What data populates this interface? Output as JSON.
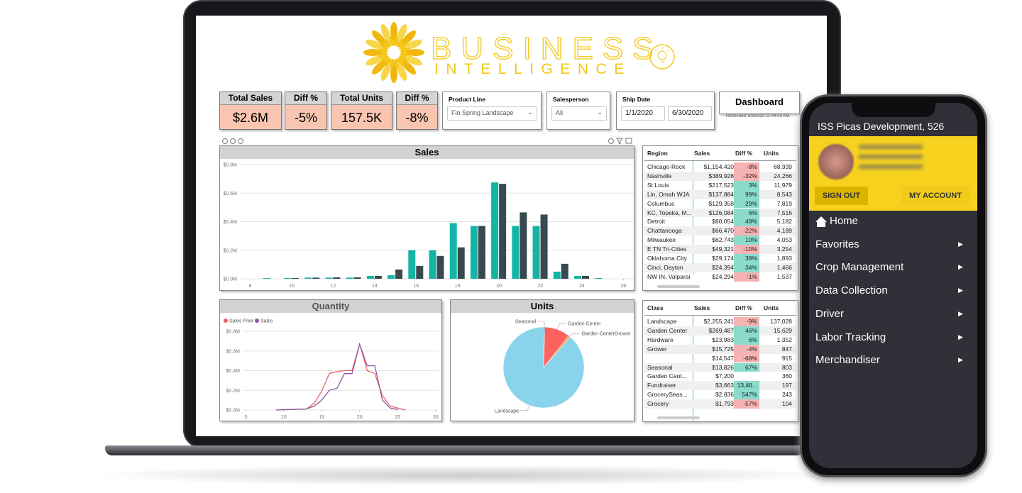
{
  "header": {
    "title": "BUSINESS",
    "subtitle": "INTELLIGENCE"
  },
  "kpis": [
    {
      "label": "Total Sales",
      "value": "$2.6M"
    },
    {
      "label": "Diff %",
      "value": "-5%"
    },
    {
      "label": "Total Units",
      "value": "157.5K"
    },
    {
      "label": "Diff %",
      "value": "-8%"
    }
  ],
  "filters": {
    "product_line": {
      "label": "Product Line",
      "value": "Fin Spring Landscape"
    },
    "salesperson": {
      "label": "Salesperson",
      "value": "All"
    },
    "ship_date": {
      "label": "Ship Date",
      "from": "1/1/2020",
      "to": "6/30/2020"
    }
  },
  "dashboard": {
    "title": "Dashboard",
    "refreshed": "Refreshed: 6/8/2020 11:44:42 AM"
  },
  "chart_data": [
    {
      "type": "bar",
      "title": "Sales",
      "x": [
        9,
        10,
        11,
        12,
        13,
        14,
        15,
        16,
        17,
        18,
        19,
        20,
        21,
        22,
        23,
        24,
        25
      ],
      "series": [
        {
          "color": "#14b5a5",
          "values": [
            0.005,
            0.005,
            0.008,
            0.008,
            0.008,
            0.02,
            0.025,
            0.2,
            0.2,
            0.39,
            0.37,
            0.675,
            0.37,
            0.37,
            0.05,
            0.02,
            0.005
          ]
        },
        {
          "color": "#384a4f",
          "values": [
            0,
            0.005,
            0.008,
            0.01,
            0.01,
            0.02,
            0.065,
            0.09,
            0.16,
            0.22,
            0.37,
            0.665,
            0.465,
            0.45,
            0.105,
            0.02,
            0
          ]
        }
      ],
      "xlim": [
        7.5,
        26.5
      ],
      "xticks": [
        8,
        10,
        12,
        14,
        16,
        18,
        20,
        22,
        24,
        26
      ],
      "ylim": [
        0,
        0.8
      ],
      "yticks": [
        {
          "value": 0,
          "label": "$0.0M"
        },
        {
          "value": 0.2,
          "label": "$0.2M"
        },
        {
          "value": 0.4,
          "label": "$0.4M"
        },
        {
          "value": 0.6,
          "label": "$0.6M"
        },
        {
          "value": 0.8,
          "label": "$0.8M"
        }
      ]
    },
    {
      "type": "line",
      "title": "Quantity",
      "x": [
        9,
        10,
        11,
        12,
        13,
        14,
        15,
        16,
        17,
        18,
        19,
        20,
        21,
        22,
        23,
        24,
        25,
        26
      ],
      "series": [
        {
          "name": "Sales Prior",
          "color": "#f0606a",
          "values": [
            0,
            0.005,
            0.005,
            0.01,
            0.01,
            0.07,
            0.19,
            0.37,
            0.39,
            0.4,
            0.4,
            0.67,
            0.4,
            0.37,
            0.15,
            0.04,
            0.02,
            0
          ]
        },
        {
          "name": "Sales",
          "color": "#8c5aa0",
          "values": [
            0,
            0.003,
            0.005,
            0.008,
            0.01,
            0.04,
            0.1,
            0.2,
            0.22,
            0.37,
            0.37,
            0.67,
            0.45,
            0.45,
            0.1,
            0.02,
            0.005,
            null
          ]
        }
      ],
      "xlim": [
        4.6,
        30.4
      ],
      "xticks": [
        5,
        10,
        15,
        20,
        25,
        30
      ],
      "ylim": [
        0,
        0.8
      ],
      "yticks": [
        {
          "value": 0,
          "label": "$0.0M"
        },
        {
          "value": 0.2,
          "label": "$0.2M"
        },
        {
          "value": 0.4,
          "label": "$0.4M"
        },
        {
          "value": 0.6,
          "label": "$0.6M"
        },
        {
          "value": 0.8,
          "label": "$0.8M"
        }
      ]
    },
    {
      "type": "pie",
      "title": "Units",
      "categories": [
        "Seasonal",
        "Garden Center",
        "Garden CenterGrower",
        "Landscape"
      ],
      "values": [
        803,
        15629,
        1352,
        137028
      ],
      "colors": [
        "#4a6b78",
        "#fd625e",
        "#f2a75c",
        "#8ad4eb"
      ]
    }
  ],
  "region_table": {
    "columns": [
      "Region",
      "Sales",
      "Diff %",
      "Units"
    ],
    "rows": [
      [
        "Chicago-Rock",
        "$1,154,420",
        "-8%",
        "68,939"
      ],
      [
        "Nashville",
        "$389,928",
        "-32%",
        "24,266"
      ],
      [
        "St Louis",
        "$217,523",
        "3%",
        "11,979"
      ],
      [
        "Lin, Omah WJA",
        "$137,884",
        "99%",
        "8,543"
      ],
      [
        "Columbus",
        "$129,358",
        "29%",
        "7,819"
      ],
      [
        "KC, Topeka, M...",
        "$126,084",
        "6%",
        "7,516"
      ],
      [
        "Detroit",
        "$80,054",
        "49%",
        "5,182"
      ],
      [
        "Chattanooga",
        "$66,470",
        "-22%",
        "4,189"
      ],
      [
        "Milwaukee",
        "$62,743",
        "10%",
        "4,053"
      ],
      [
        "E TN Tri-Cities",
        "$49,321",
        "-10%",
        "3,254"
      ],
      [
        "Oklahoma City",
        "$29,174",
        "38%",
        "1,893"
      ],
      [
        "Cinci, Dayton",
        "$24,394",
        "34%",
        "1,466"
      ],
      [
        "NW IN, Valparai",
        "$24,294",
        "-1%",
        "1,537"
      ]
    ]
  },
  "class_table": {
    "columns": [
      "Class",
      "Sales",
      "Diff %",
      "Units"
    ],
    "rows": [
      [
        "Landscape",
        "$2,255,241",
        "-9%",
        "137,028"
      ],
      [
        "Garden Center",
        "$269,487",
        "46%",
        "15,629"
      ],
      [
        "Hardware",
        "$23,983",
        "6%",
        "1,352"
      ],
      [
        "Grower",
        "$15,725",
        "-4%",
        "847"
      ],
      [
        null,
        "$14,547",
        "-68%",
        "915"
      ],
      [
        "Seasonal",
        "$13,826",
        "67%",
        "803"
      ],
      [
        "Garden Cent...",
        "$7,200",
        null,
        "360"
      ],
      [
        "Fundraiser",
        "$3,663",
        "13,46...",
        "197"
      ],
      [
        "GrocerySeas...",
        "$2,836",
        "547%",
        "243"
      ],
      [
        "Grocery",
        "$1,793",
        "-57%",
        "104"
      ]
    ]
  },
  "phone": {
    "header": "ISS Picas Development, 526",
    "buttons": [
      "SIGN OUT",
      "MY ACCOUNT"
    ],
    "menu": [
      "Home",
      "Favorites",
      "Crop Management",
      "Data Collection",
      "Driver",
      "Labor Tracking",
      "Merchandiser"
    ]
  }
}
